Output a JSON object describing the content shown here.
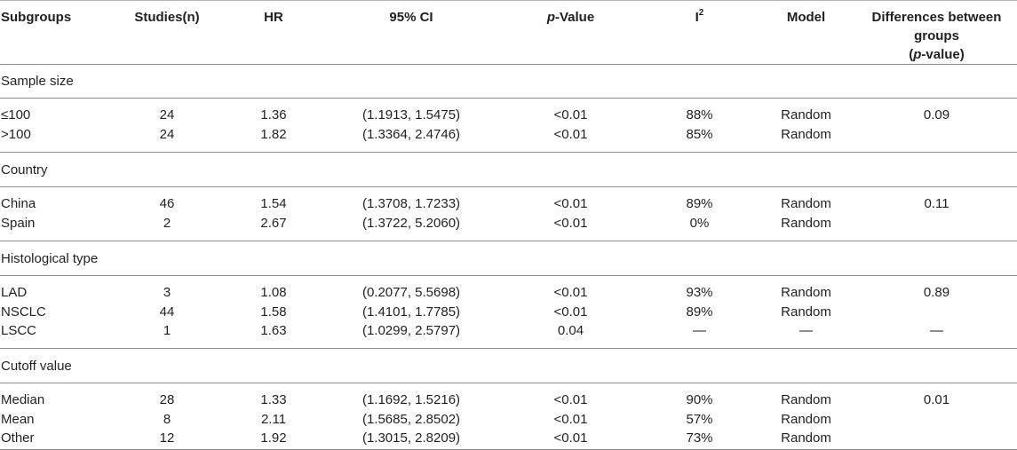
{
  "header": {
    "subgroups": "Subgroups",
    "studies": "Studies(n)",
    "hr": "HR",
    "ci": "95% CI",
    "p_italic": "p",
    "p_rest": "-Value",
    "i_base": "I",
    "i_sup": "2",
    "model": "Model",
    "diff_line1": "Differences between groups",
    "diff_open": "(",
    "diff_italic": "p",
    "diff_rest": "-value)"
  },
  "sections": [
    {
      "title": "Sample size",
      "rows": [
        {
          "label": "≤100",
          "studies": "24",
          "hr": "1.36",
          "ci": "(1.1913, 1.5475)",
          "p": "<0.01",
          "i2": "88%",
          "model": "Random",
          "diff": "0.09"
        },
        {
          "label": ">100",
          "studies": "24",
          "hr": "1.82",
          "ci": "(1.3364, 2.4746)",
          "p": "<0.01",
          "i2": "85%",
          "model": "Random",
          "diff": ""
        }
      ]
    },
    {
      "title": "Country",
      "rows": [
        {
          "label": "China",
          "studies": "46",
          "hr": "1.54",
          "ci": "(1.3708, 1.7233)",
          "p": "<0.01",
          "i2": "89%",
          "model": "Random",
          "diff": "0.11"
        },
        {
          "label": "Spain",
          "studies": "2",
          "hr": "2.67",
          "ci": "(1.3722, 5.2060)",
          "p": "<0.01",
          "i2": "0%",
          "model": "Random",
          "diff": ""
        }
      ]
    },
    {
      "title": "Histological type",
      "rows": [
        {
          "label": "LAD",
          "studies": "3",
          "hr": "1.08",
          "ci": "(0.2077, 5.5698)",
          "p": "<0.01",
          "i2": "93%",
          "model": "Random",
          "diff": "0.89"
        },
        {
          "label": "NSCLC",
          "studies": "44",
          "hr": "1.58",
          "ci": "(1.4101, 1.7785)",
          "p": "<0.01",
          "i2": "89%",
          "model": "Random",
          "diff": ""
        },
        {
          "label": "LSCC",
          "studies": "1",
          "hr": "1.63",
          "ci": "(1.0299, 2.5797)",
          "p": "0.04",
          "i2": "—",
          "model": "—",
          "diff": "—"
        }
      ]
    },
    {
      "title": "Cutoff value",
      "rows": [
        {
          "label": "Median",
          "studies": "28",
          "hr": "1.33",
          "ci": "(1.1692, 1.5216)",
          "p": "<0.01",
          "i2": "90%",
          "model": "Random",
          "diff": "0.01"
        },
        {
          "label": "Mean",
          "studies": "8",
          "hr": "2.11",
          "ci": "(1.5685, 2.8502)",
          "p": "<0.01",
          "i2": "57%",
          "model": "Random",
          "diff": ""
        },
        {
          "label": "Other",
          "studies": "12",
          "hr": "1.92",
          "ci": "(1.3015, 2.8209)",
          "p": "<0.01",
          "i2": "73%",
          "model": "Random",
          "diff": ""
        }
      ]
    }
  ]
}
